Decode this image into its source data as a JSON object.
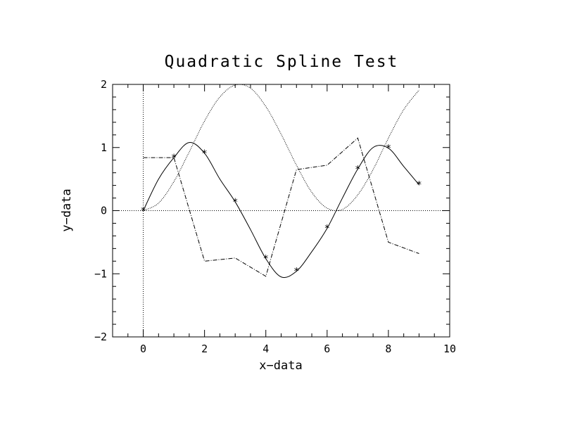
{
  "chart_data": {
    "type": "line",
    "title": "Quadratic Spline Test",
    "xlabel": "x−data",
    "ylabel": "y−data",
    "xlim": [
      -1,
      10
    ],
    "ylim": [
      -2,
      2
    ],
    "xticks": [
      0,
      2,
      4,
      6,
      8,
      10
    ],
    "xtick_labels": [
      "0",
      "2",
      "4",
      "6",
      "8",
      "10"
    ],
    "yticks": [
      -2,
      -1,
      0,
      1,
      2
    ],
    "ytick_labels": [
      "−2",
      "−1",
      "0",
      "1",
      "2"
    ],
    "grid": false,
    "legend": "none",
    "reference_lines": [
      {
        "orientation": "horizontal",
        "value": 0,
        "style": "dotted"
      },
      {
        "orientation": "vertical",
        "value": 0,
        "style": "dotted"
      }
    ],
    "series": [
      {
        "style": "markers",
        "marker": "*",
        "x": [
          0,
          1,
          2,
          3,
          4,
          5,
          6,
          7,
          8,
          9
        ],
        "y": [
          0,
          0.84,
          0.91,
          0.14,
          -0.76,
          -0.96,
          -0.28,
          0.66,
          0.99,
          0.41
        ]
      },
      {
        "style": "solid",
        "x": [
          0,
          0.5,
          1,
          1.5,
          2,
          2.5,
          3,
          3.5,
          4,
          4.5,
          5,
          5.5,
          6,
          6.5,
          7,
          7.5,
          8,
          8.5,
          9
        ],
        "y": [
          0,
          0.5,
          0.84,
          1.08,
          0.91,
          0.5,
          0.14,
          -0.3,
          -0.76,
          -1.05,
          -0.96,
          -0.65,
          -0.28,
          0.2,
          0.66,
          1.0,
          0.99,
          0.7,
          0.41
        ]
      },
      {
        "style": "dashed",
        "x": [
          0,
          1,
          2,
          3,
          4,
          5,
          6,
          7,
          8,
          9
        ],
        "y": [
          0.84,
          0.84,
          -0.8,
          -0.75,
          -1.04,
          0.65,
          0.72,
          1.15,
          -0.5,
          -0.68
        ]
      },
      {
        "style": "dotted",
        "x": [
          0,
          0.5,
          1,
          1.5,
          2,
          2.5,
          3,
          3.5,
          4,
          4.5,
          5,
          5.5,
          6,
          6.5,
          7,
          7.5,
          8,
          8.5,
          9
        ],
        "y": [
          0,
          0.12,
          0.46,
          0.93,
          1.42,
          1.8,
          1.99,
          1.94,
          1.65,
          1.21,
          0.72,
          0.29,
          0.04,
          0.02,
          0.25,
          0.65,
          1.15,
          1.6,
          1.91
        ]
      }
    ]
  }
}
